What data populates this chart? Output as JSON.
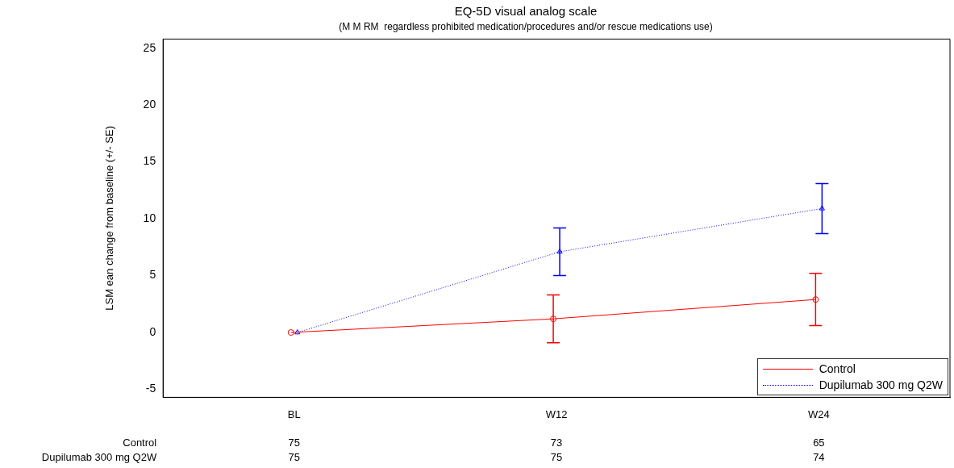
{
  "chart_data": {
    "type": "line",
    "title": "EQ-5D visual analog scale",
    "subtitle": "(M M RM  regardless prohibited medication/procedures and/or rescue medications use)",
    "ylabel": "LSM ean change from baseline (+/- SE)",
    "categories": [
      "BL",
      "W12",
      "W24"
    ],
    "series": [
      {
        "name": "Control",
        "color": "#ff0000",
        "marker": "circle",
        "line_style": "solid",
        "values": [
          0,
          1.2,
          2.9
        ],
        "errors": [
          null,
          2.1,
          2.3
        ]
      },
      {
        "name": "Dupilumab 300 mg Q2W",
        "color": "#0000ff",
        "marker": "triangle",
        "line_style": "dotted",
        "values": [
          0,
          7.1,
          10.9
        ],
        "errors": [
          null,
          2.1,
          2.2
        ]
      }
    ],
    "ylim": [
      -5.7,
      25.8
    ],
    "yticks": [
      -5,
      0,
      5,
      10,
      15,
      20,
      25
    ],
    "grid": false,
    "legend": "bottom right",
    "annotations": [
      "Control",
      "75",
      "73",
      "65",
      "Dupilumab 300 mg Q2W",
      "75",
      "75",
      "74"
    ]
  }
}
